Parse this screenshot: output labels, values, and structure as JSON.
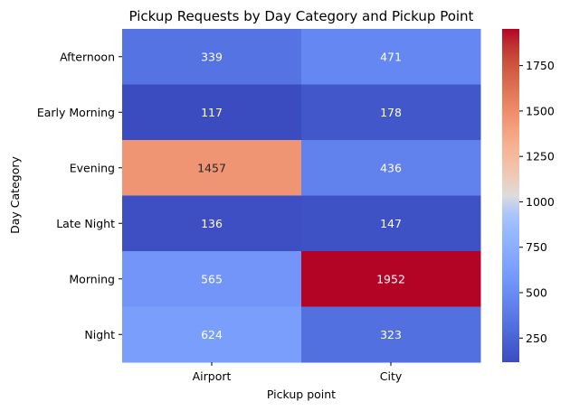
{
  "chart_data": {
    "type": "heatmap",
    "title": "Pickup Requests by Day Category and Pickup Point",
    "xlabel": "Pickup point",
    "ylabel": "Day Category",
    "x_categories": [
      "Airport",
      "City"
    ],
    "y_categories": [
      "Afternoon",
      "Early Morning",
      "Evening",
      "Late Night",
      "Morning",
      "Night"
    ],
    "values": [
      [
        339,
        471
      ],
      [
        117,
        178
      ],
      [
        1457,
        436
      ],
      [
        136,
        147
      ],
      [
        565,
        1952
      ],
      [
        624,
        323
      ]
    ],
    "colormap": "coolwarm",
    "colorbar": {
      "min": 117,
      "max": 1952,
      "ticks": [
        250,
        500,
        750,
        1000,
        1250,
        1500,
        1750
      ],
      "tick_labels": [
        "250",
        "500",
        "750",
        "1000",
        "1250",
        "1500",
        "1750"
      ]
    },
    "annotated": true,
    "grid": false
  }
}
